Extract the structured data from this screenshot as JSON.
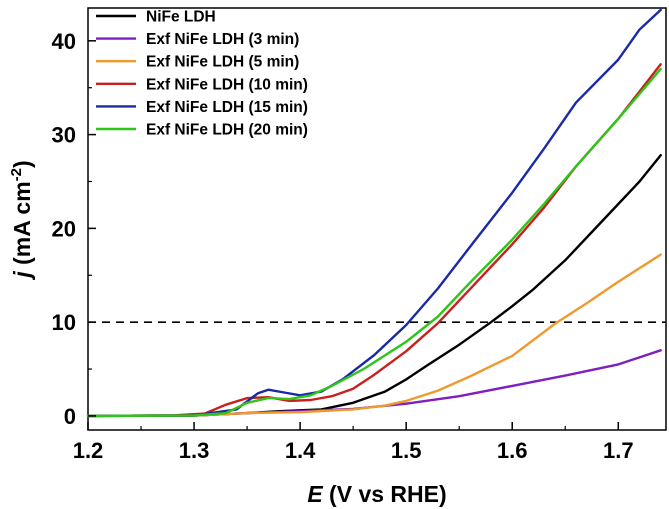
{
  "chart_data": {
    "type": "line",
    "xlim": [
      1.2,
      1.745
    ],
    "ylim": [
      -1.5,
      43.5
    ],
    "x_ticks": [
      1.2,
      1.3,
      1.4,
      1.5,
      1.6,
      1.7
    ],
    "x_tick_labels": [
      "1.2",
      "1.3",
      "1.4",
      "1.5",
      "1.6",
      "1.7"
    ],
    "y_ticks": [
      0,
      10,
      20,
      30,
      40
    ],
    "y_tick_labels": [
      "0",
      "10",
      "20",
      "30",
      "40"
    ],
    "xlabel": {
      "italic": "E",
      "rest": " (V vs RHE)"
    },
    "ylabel": {
      "italic": "j",
      "rest": " (mA cm",
      "sup": "-2",
      "close": ")"
    },
    "reference_line": {
      "y": 10,
      "style": "dashed"
    },
    "legend_position": "top-left",
    "series": [
      {
        "name": "NiFe LDH",
        "color": "#000000",
        "points": [
          [
            1.2,
            0
          ],
          [
            1.3,
            0.05
          ],
          [
            1.35,
            0.3
          ],
          [
            1.38,
            0.5
          ],
          [
            1.42,
            0.7
          ],
          [
            1.45,
            1.4
          ],
          [
            1.48,
            2.6
          ],
          [
            1.5,
            3.9
          ],
          [
            1.52,
            5.4
          ],
          [
            1.55,
            7.6
          ],
          [
            1.58,
            10.0
          ],
          [
            1.6,
            11.7
          ],
          [
            1.62,
            13.5
          ],
          [
            1.65,
            16.6
          ],
          [
            1.68,
            20.2
          ],
          [
            1.7,
            22.6
          ],
          [
            1.72,
            25.0
          ],
          [
            1.74,
            27.8
          ]
        ]
      },
      {
        "name": "Exf NiFe LDH (3 min)",
        "color": "#7f1fc0",
        "points": [
          [
            1.2,
            0
          ],
          [
            1.3,
            0.05
          ],
          [
            1.35,
            0.3
          ],
          [
            1.4,
            0.5
          ],
          [
            1.45,
            0.75
          ],
          [
            1.5,
            1.3
          ],
          [
            1.55,
            2.1
          ],
          [
            1.6,
            3.2
          ],
          [
            1.65,
            4.3
          ],
          [
            1.7,
            5.5
          ],
          [
            1.74,
            7.0
          ]
        ]
      },
      {
        "name": "Exf NiFe LDH (5 min)",
        "color": "#ef9a2e",
        "points": [
          [
            1.2,
            0
          ],
          [
            1.3,
            0.05
          ],
          [
            1.35,
            0.3
          ],
          [
            1.4,
            0.4
          ],
          [
            1.45,
            0.7
          ],
          [
            1.48,
            1.1
          ],
          [
            1.5,
            1.6
          ],
          [
            1.53,
            2.7
          ],
          [
            1.56,
            4.2
          ],
          [
            1.6,
            6.4
          ],
          [
            1.64,
            9.8
          ],
          [
            1.67,
            12.0
          ],
          [
            1.7,
            14.3
          ],
          [
            1.74,
            17.2
          ]
        ]
      },
      {
        "name": "Exf NiFe LDH (10 min)",
        "color": "#c8201e",
        "points": [
          [
            1.2,
            0
          ],
          [
            1.28,
            0.05
          ],
          [
            1.31,
            0.25
          ],
          [
            1.33,
            1.2
          ],
          [
            1.35,
            1.9
          ],
          [
            1.37,
            2.0
          ],
          [
            1.39,
            1.6
          ],
          [
            1.41,
            1.7
          ],
          [
            1.43,
            2.1
          ],
          [
            1.45,
            2.9
          ],
          [
            1.47,
            4.4
          ],
          [
            1.5,
            6.9
          ],
          [
            1.53,
            9.9
          ],
          [
            1.56,
            13.5
          ],
          [
            1.6,
            18.3
          ],
          [
            1.63,
            22.2
          ],
          [
            1.66,
            26.6
          ],
          [
            1.7,
            31.7
          ],
          [
            1.74,
            37.5
          ]
        ]
      },
      {
        "name": "Exf NiFe LDH (15 min)",
        "color": "#1a2aa6",
        "points": [
          [
            1.2,
            0
          ],
          [
            1.3,
            0.05
          ],
          [
            1.34,
            0.7
          ],
          [
            1.36,
            2.4
          ],
          [
            1.37,
            2.8
          ],
          [
            1.385,
            2.5
          ],
          [
            1.4,
            2.2
          ],
          [
            1.42,
            2.6
          ],
          [
            1.44,
            3.9
          ],
          [
            1.47,
            6.5
          ],
          [
            1.5,
            9.7
          ],
          [
            1.53,
            13.6
          ],
          [
            1.56,
            18.0
          ],
          [
            1.6,
            23.8
          ],
          [
            1.63,
            28.5
          ],
          [
            1.66,
            33.4
          ],
          [
            1.7,
            38.0
          ],
          [
            1.72,
            41.2
          ],
          [
            1.74,
            43.3
          ]
        ]
      },
      {
        "name": "Exf NiFe LDH (20 min)",
        "color": "#2ec41a",
        "points": [
          [
            1.2,
            0
          ],
          [
            1.3,
            0.05
          ],
          [
            1.33,
            0.3
          ],
          [
            1.35,
            1.4
          ],
          [
            1.37,
            1.9
          ],
          [
            1.39,
            1.8
          ],
          [
            1.41,
            2.2
          ],
          [
            1.43,
            3.2
          ],
          [
            1.46,
            5.0
          ],
          [
            1.5,
            7.9
          ],
          [
            1.53,
            10.6
          ],
          [
            1.56,
            14.2
          ],
          [
            1.6,
            18.8
          ],
          [
            1.63,
            22.6
          ],
          [
            1.66,
            26.6
          ],
          [
            1.7,
            31.7
          ],
          [
            1.74,
            37.0
          ]
        ]
      }
    ]
  }
}
